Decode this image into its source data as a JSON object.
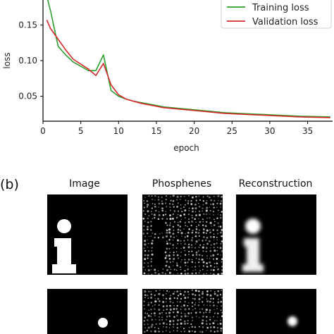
{
  "panel_b_label": "(b)",
  "columns": [
    "Image",
    "Phosphenes",
    "Reconstruction"
  ],
  "colors": {
    "training": "#2ca02c",
    "validation": "#d62728",
    "axis": "#000000",
    "tile_bg": "#000000",
    "phosphene": "#cfcfcf"
  },
  "chart_data": {
    "type": "line",
    "title": "",
    "xlabel": "epoch",
    "ylabel": "loss",
    "xlim": [
      0,
      38.3
    ],
    "ylim": [
      0.015,
      0.185
    ],
    "xticks": [
      0,
      5,
      10,
      15,
      20,
      25,
      30,
      35
    ],
    "yticks": [
      0.05,
      0.1,
      0.15
    ],
    "ytick_labels": [
      "0.05",
      "0.10",
      "0.15"
    ],
    "grid": false,
    "legend_position": "top-right",
    "series": [
      {
        "name": "Training loss",
        "color": "#2ca02c",
        "x": [
          0.5,
          1,
          2,
          3,
          4,
          5,
          6,
          7,
          8,
          9,
          10,
          11,
          12,
          13,
          14,
          15,
          16,
          17,
          18,
          19,
          20,
          22,
          24,
          26,
          28,
          30,
          32,
          34,
          36,
          38
        ],
        "y": [
          0.19,
          0.17,
          0.12,
          0.108,
          0.098,
          0.092,
          0.086,
          0.086,
          0.108,
          0.058,
          0.05,
          0.046,
          0.043,
          0.041,
          0.039,
          0.037,
          0.035,
          0.034,
          0.033,
          0.032,
          0.031,
          0.029,
          0.027,
          0.026,
          0.025,
          0.024,
          0.023,
          0.022,
          0.0215,
          0.021
        ]
      },
      {
        "name": "Validation loss",
        "color": "#d62728",
        "x": [
          0.5,
          1,
          2,
          3,
          4,
          5,
          6,
          7,
          8,
          9,
          10,
          11,
          12,
          13,
          14,
          15,
          16,
          17,
          18,
          19,
          20,
          22,
          24,
          26,
          28,
          30,
          32,
          34,
          36,
          38
        ],
        "y": [
          0.157,
          0.145,
          0.13,
          0.115,
          0.102,
          0.095,
          0.088,
          0.079,
          0.096,
          0.066,
          0.052,
          0.046,
          0.043,
          0.04,
          0.038,
          0.036,
          0.034,
          0.033,
          0.032,
          0.031,
          0.03,
          0.028,
          0.026,
          0.025,
          0.024,
          0.023,
          0.022,
          0.021,
          0.0205,
          0.02
        ]
      }
    ]
  }
}
